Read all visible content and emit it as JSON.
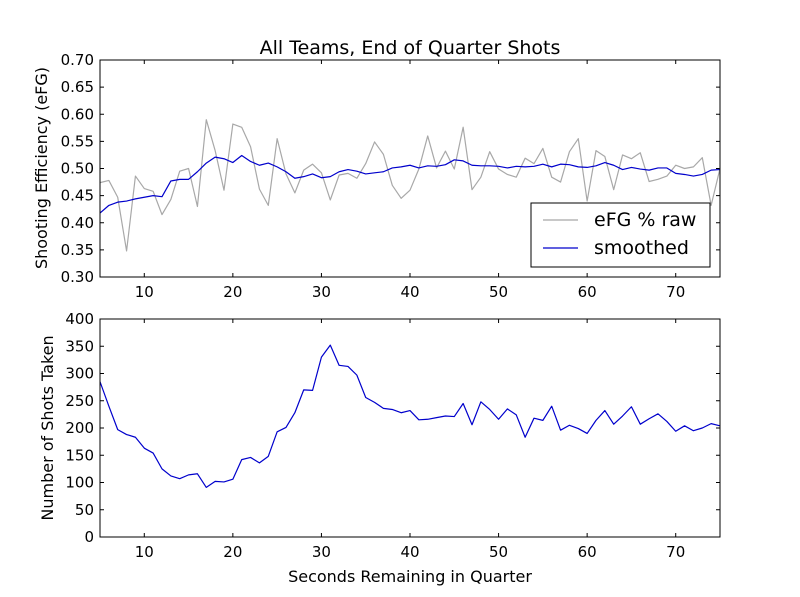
{
  "chart_data": [
    {
      "type": "line",
      "title": "All Teams, End of Quarter Shots",
      "xlabel": "",
      "ylabel": "Shooting Efficiency (eFG)",
      "xlim": [
        5,
        75
      ],
      "ylim": [
        0.3,
        0.7
      ],
      "xticks": [
        10,
        20,
        30,
        40,
        50,
        60,
        70
      ],
      "yticks": [
        0.3,
        0.35,
        0.4,
        0.45,
        0.5,
        0.55,
        0.6,
        0.65,
        0.7
      ],
      "xtick_labels": [
        "10",
        "20",
        "30",
        "40",
        "50",
        "60",
        "70"
      ],
      "ytick_labels": [
        "0.30",
        "0.35",
        "0.40",
        "0.45",
        "0.50",
        "0.55",
        "0.60",
        "0.65",
        "0.70"
      ],
      "legend_position": "lower-right",
      "x": [
        5,
        6,
        7,
        8,
        9,
        10,
        11,
        12,
        13,
        14,
        15,
        16,
        17,
        18,
        19,
        20,
        21,
        22,
        23,
        24,
        25,
        26,
        27,
        28,
        29,
        30,
        31,
        32,
        33,
        34,
        35,
        36,
        37,
        38,
        39,
        40,
        41,
        42,
        43,
        44,
        45,
        46,
        47,
        48,
        49,
        50,
        51,
        52,
        53,
        54,
        55,
        56,
        57,
        58,
        59,
        60,
        61,
        62,
        63,
        64,
        65,
        66,
        67,
        68,
        69,
        70,
        71,
        72,
        73,
        74,
        75
      ],
      "series": [
        {
          "name": "eFG % raw",
          "color": "#a8a8a8",
          "values": [
            0.474,
            0.478,
            0.447,
            0.348,
            0.486,
            0.463,
            0.458,
            0.415,
            0.443,
            0.495,
            0.5,
            0.43,
            0.59,
            0.533,
            0.46,
            0.582,
            0.576,
            0.54,
            0.462,
            0.432,
            0.555,
            0.49,
            0.455,
            0.497,
            0.508,
            0.492,
            0.442,
            0.488,
            0.491,
            0.482,
            0.509,
            0.549,
            0.526,
            0.469,
            0.445,
            0.46,
            0.499,
            0.56,
            0.501,
            0.532,
            0.499,
            0.576,
            0.461,
            0.484,
            0.531,
            0.499,
            0.489,
            0.484,
            0.519,
            0.509,
            0.537,
            0.484,
            0.475,
            0.531,
            0.555,
            0.44,
            0.533,
            0.522,
            0.461,
            0.525,
            0.518,
            0.529,
            0.476,
            0.48,
            0.486,
            0.506,
            0.5,
            0.503,
            0.52,
            0.432,
            0.5
          ]
        },
        {
          "name": "smoothed",
          "color": "#0000cc",
          "values": [
            0.418,
            0.432,
            0.438,
            0.44,
            0.444,
            0.447,
            0.45,
            0.448,
            0.477,
            0.48,
            0.48,
            0.494,
            0.51,
            0.521,
            0.518,
            0.511,
            0.524,
            0.513,
            0.506,
            0.51,
            0.503,
            0.494,
            0.482,
            0.485,
            0.49,
            0.483,
            0.485,
            0.494,
            0.498,
            0.495,
            0.49,
            0.492,
            0.494,
            0.501,
            0.503,
            0.506,
            0.501,
            0.505,
            0.504,
            0.507,
            0.516,
            0.514,
            0.506,
            0.505,
            0.505,
            0.504,
            0.501,
            0.504,
            0.503,
            0.504,
            0.508,
            0.503,
            0.508,
            0.507,
            0.503,
            0.502,
            0.505,
            0.511,
            0.506,
            0.498,
            0.502,
            0.499,
            0.497,
            0.501,
            0.501,
            0.491,
            0.489,
            0.486,
            0.489,
            0.497,
            0.498
          ]
        }
      ]
    },
    {
      "type": "line",
      "title": "",
      "xlabel": "Seconds Remaining in Quarter",
      "ylabel": "Number of Shots Taken",
      "xlim": [
        5,
        75
      ],
      "ylim": [
        0,
        400
      ],
      "xticks": [
        10,
        20,
        30,
        40,
        50,
        60,
        70
      ],
      "yticks": [
        0,
        50,
        100,
        150,
        200,
        250,
        300,
        350,
        400
      ],
      "xtick_labels": [
        "10",
        "20",
        "30",
        "40",
        "50",
        "60",
        "70"
      ],
      "ytick_labels": [
        "0",
        "50",
        "100",
        "150",
        "200",
        "250",
        "300",
        "350",
        "400"
      ],
      "x": [
        5,
        6,
        7,
        8,
        9,
        10,
        11,
        12,
        13,
        14,
        15,
        16,
        17,
        18,
        19,
        20,
        21,
        22,
        23,
        24,
        25,
        26,
        27,
        28,
        29,
        30,
        31,
        32,
        33,
        34,
        35,
        36,
        37,
        38,
        39,
        40,
        41,
        42,
        43,
        44,
        45,
        46,
        47,
        48,
        49,
        50,
        51,
        52,
        53,
        54,
        55,
        56,
        57,
        58,
        59,
        60,
        61,
        62,
        63,
        64,
        65,
        66,
        67,
        68,
        69,
        70,
        71,
        72,
        73,
        74,
        75
      ],
      "series": [
        {
          "color": "#0000cc",
          "values": [
            285,
            240,
            197,
            188,
            183,
            163,
            154,
            125,
            112,
            107,
            114,
            116,
            91,
            102,
            101,
            106,
            142,
            146,
            136,
            148,
            193,
            201,
            228,
            270,
            269,
            330,
            352,
            315,
            313,
            297,
            256,
            247,
            236,
            234,
            228,
            232,
            215,
            216,
            219,
            222,
            221,
            245,
            206,
            248,
            234,
            216,
            235,
            224,
            183,
            218,
            214,
            240,
            196,
            205,
            199,
            190,
            214,
            232,
            207,
            222,
            239,
            207,
            217,
            226,
            212,
            194,
            204,
            195,
            200,
            208,
            204
          ]
        }
      ]
    }
  ]
}
